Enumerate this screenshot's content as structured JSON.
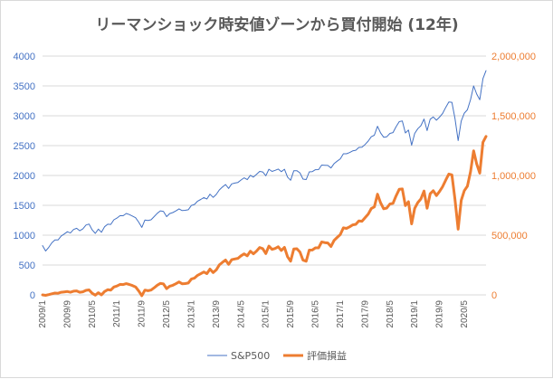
{
  "chart_data": {
    "type": "line",
    "title": "リーマンショック時安値ゾーンから買付開始 (12年)",
    "x_tick_labels": [
      "2009/1",
      "2009/9",
      "2010/5",
      "2011/1",
      "2011/9",
      "2012/5",
      "2013/1",
      "2013/9",
      "2014/5",
      "2015/1",
      "2015/9",
      "2016/5",
      "2017/1",
      "2017/9",
      "2018/5",
      "2019/1",
      "2019/9",
      "2020/5"
    ],
    "y_left": {
      "min": 0,
      "max": 4000,
      "step": 500,
      "tick_labels": [
        "0",
        "500",
        "1000",
        "1500",
        "2000",
        "2500",
        "3000",
        "3500",
        "4000"
      ]
    },
    "y_right": {
      "min": 0,
      "max": 2000000,
      "step": 500000,
      "tick_labels": [
        "0",
        "500,000",
        "1,000,000",
        "1,500,000",
        "2,000,000"
      ]
    },
    "grid": true,
    "legend_position": "bottom",
    "colors": {
      "sp500": "#4472c4",
      "valuation": "#ed7d31"
    },
    "series": [
      {
        "name": "S&P500",
        "axis": "left",
        "values": [
          826,
          735,
          797,
          872,
          919,
          919,
          987,
          1020,
          1057,
          1036,
          1095,
          1115,
          1074,
          1104,
          1169,
          1187,
          1089,
          1031,
          1102,
          1049,
          1141,
          1183,
          1181,
          1258,
          1286,
          1327,
          1326,
          1364,
          1345,
          1320,
          1292,
          1219,
          1131,
          1253,
          1247,
          1258,
          1312,
          1366,
          1408,
          1398,
          1310,
          1362,
          1379,
          1406,
          1441,
          1412,
          1416,
          1426,
          1498,
          1515,
          1569,
          1598,
          1631,
          1606,
          1686,
          1633,
          1682,
          1757,
          1806,
          1848,
          1783,
          1859,
          1872,
          1884,
          1924,
          1960,
          1931,
          2003,
          1972,
          2018,
          2068,
          2059,
          1995,
          2105,
          2068,
          2086,
          2107,
          2063,
          2104,
          1972,
          1920,
          2079,
          2080,
          2044,
          1940,
          1932,
          2060,
          2065,
          2097,
          2099,
          2174,
          2171,
          2168,
          2126,
          2199,
          2239,
          2279,
          2364,
          2363,
          2384,
          2412,
          2423,
          2470,
          2472,
          2519,
          2575,
          2648,
          2674,
          2824,
          2714,
          2641,
          2648,
          2705,
          2718,
          2816,
          2902,
          2914,
          2712,
          2760,
          2507,
          2704,
          2784,
          2834,
          2946,
          2752,
          2942,
          2980,
          2926,
          2977,
          3038,
          3141,
          3231,
          3226,
          2954,
          2585,
          2912,
          3044,
          3100,
          3271,
          3500,
          3363,
          3270,
          3622,
          3756
        ]
      },
      {
        "name": "評価損益",
        "axis": "right",
        "values": [
          0,
          -4000,
          2000,
          9000,
          15000,
          14000,
          22000,
          25000,
          28000,
          22000,
          31000,
          33000,
          22000,
          26000,
          38000,
          42000,
          14000,
          -2000,
          18000,
          0,
          28000,
          43000,
          40000,
          66000,
          74000,
          88000,
          86000,
          94000,
          87000,
          78000,
          67000,
          33000,
          -7000,
          40000,
          35000,
          40000,
          60000,
          81000,
          96000,
          92000,
          52000,
          73000,
          80000,
          93000,
          108000,
          93000,
          95000,
          99000,
          133000,
          141000,
          164000,
          177000,
          192000,
          178000,
          216000,
          187000,
          209000,
          251000,
          272000,
          292000,
          255000,
          295000,
          301000,
          306000,
          327000,
          343000,
          327000,
          366000,
          344000,
          367000,
          397000,
          387000,
          346000,
          408000,
          381000,
          389000,
          403000,
          372000,
          398000,
          320000,
          282000,
          384000,
          386000,
          359000,
          291000,
          282000,
          375000,
          376000,
          394000,
          394000,
          443000,
          438000,
          435000,
          405000,
          456000,
          481000,
          505000,
          561000,
          557000,
          570000,
          586000,
          591000,
          620000,
          617000,
          647000,
          676000,
          723000,
          737000,
          843000,
          771000,
          721000,
          727000,
          761000,
          767000,
          829000,
          884000,
          887000,
          748000,
          780000,
          595000,
          725000,
          773000,
          804000,
          870000,
          726000,
          847000,
          873000,
          832000,
          866000,
          906000,
          961000,
          1012000,
          1005000,
          800000,
          550000,
          792000,
          873000,
          910000,
          1032000,
          1207000,
          1096000,
          1020000,
          1278000,
          1327000
        ]
      }
    ]
  }
}
